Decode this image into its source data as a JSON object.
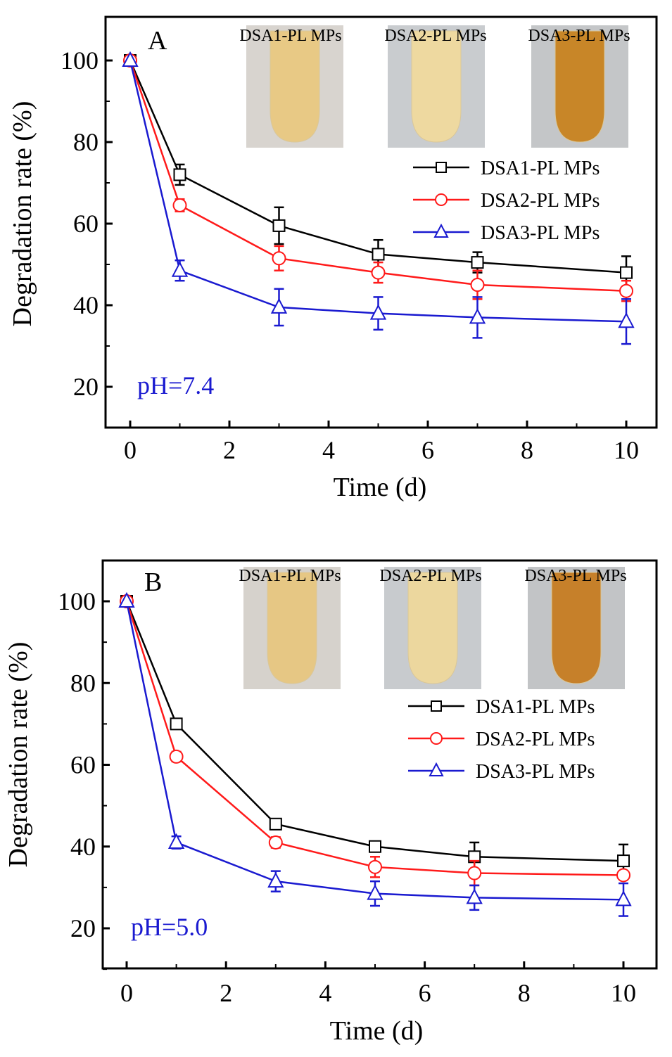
{
  "chart_data": [
    {
      "type": "line",
      "panel": "A",
      "title": "",
      "annotation": "pH=7.4",
      "annotation_color": "#1a1ad0",
      "xlabel": "Time (d)",
      "ylabel": "Degradation rate (%)",
      "xlim": [
        -0.5,
        11
      ],
      "ylim": [
        10,
        110
      ],
      "xticks": [
        0,
        2,
        4,
        6,
        8,
        10
      ],
      "xtick_labels": [
        "0",
        "2",
        "4",
        "6",
        "8",
        "10"
      ],
      "yticks": [
        20,
        40,
        60,
        80,
        100
      ],
      "ytick_labels": [
        "20",
        "40",
        "60",
        "80",
        "100"
      ],
      "grid": false,
      "legend_position": "right",
      "x": [
        0,
        1,
        3,
        5,
        7,
        10
      ],
      "series": [
        {
          "name": "DSA1-PL MPs",
          "color": "#000000",
          "marker": "square",
          "values": [
            100,
            72,
            59.5,
            52.5,
            50.5,
            48
          ],
          "errors": [
            0,
            2.5,
            4.5,
            3.5,
            2.5,
            4
          ]
        },
        {
          "name": "DSA2-PL MPs",
          "color": "#ff1a1a",
          "marker": "circle",
          "values": [
            100,
            64.5,
            51.5,
            48,
            45,
            43.5
          ],
          "errors": [
            0,
            1.5,
            3,
            2.5,
            3.5,
            2.5
          ]
        },
        {
          "name": "DSA3-PL MPs",
          "color": "#1a1ad0",
          "marker": "triangle",
          "values": [
            100,
            48.5,
            39.5,
            38,
            37,
            36
          ],
          "errors": [
            0,
            2.5,
            4.5,
            4,
            5,
            5.5
          ]
        }
      ],
      "insets": [
        {
          "label": "DSA1-PL MPs",
          "tube_color": "#e8c985",
          "bg_color": "#d8d4cf"
        },
        {
          "label": "DSA2-PL MPs",
          "tube_color": "#eed9a0",
          "bg_color": "#c9cccf"
        },
        {
          "label": "DSA3-PL MPs",
          "tube_color": "#c88628",
          "bg_color": "#c4c6c8"
        }
      ]
    },
    {
      "type": "line",
      "panel": "B",
      "title": "",
      "annotation": "pH=5.0",
      "annotation_color": "#1a1ad0",
      "xlabel": "Time (d)",
      "ylabel": "Degradation rate (%)",
      "xlim": [
        -0.5,
        11
      ],
      "ylim": [
        10,
        110
      ],
      "xticks": [
        0,
        2,
        4,
        6,
        8,
        10
      ],
      "xtick_labels": [
        "0",
        "2",
        "4",
        "6",
        "8",
        "10"
      ],
      "yticks": [
        20,
        40,
        60,
        80,
        100
      ],
      "ytick_labels": [
        "20",
        "40",
        "60",
        "80",
        "100"
      ],
      "grid": false,
      "legend_position": "right",
      "x": [
        0,
        1,
        3,
        5,
        7,
        10
      ],
      "series": [
        {
          "name": "DSA1-PL MPs",
          "color": "#000000",
          "marker": "square",
          "values": [
            100,
            70,
            45.5,
            40,
            37.5,
            36.5
          ],
          "errors": [
            0,
            0.7,
            1,
            1,
            3.5,
            4
          ]
        },
        {
          "name": "DSA2-PL MPs",
          "color": "#ff1a1a",
          "marker": "circle",
          "values": [
            100,
            62,
            41,
            35,
            33.5,
            33
          ],
          "errors": [
            0,
            1.2,
            1.3,
            2.5,
            3,
            1
          ]
        },
        {
          "name": "DSA3-PL MPs",
          "color": "#1a1ad0",
          "marker": "triangle",
          "values": [
            100,
            41,
            31.5,
            28.5,
            27.5,
            27
          ],
          "errors": [
            0,
            1.5,
            2.5,
            3,
            3,
            4
          ]
        }
      ],
      "insets": [
        {
          "label": "DSA1-PL MPs",
          "tube_color": "#e6c784",
          "bg_color": "#d6d2cc"
        },
        {
          "label": "DSA2-PL MPs",
          "tube_color": "#ecd79e",
          "bg_color": "#c8cbce"
        },
        {
          "label": "DSA3-PL MPs",
          "tube_color": "#c6802a",
          "bg_color": "#c2c4c6"
        }
      ]
    }
  ]
}
